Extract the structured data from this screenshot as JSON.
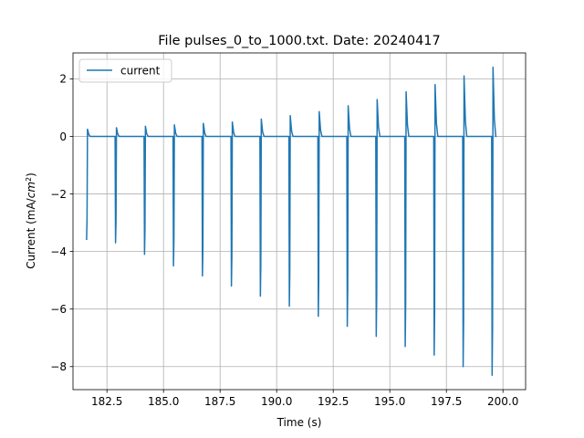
{
  "chart_data": {
    "type": "line",
    "title": "File pulses_0_to_1000.txt. Date: 20240417",
    "xlabel": "Time (s)",
    "ylabel_prefix": "Current (mA/",
    "ylabel_unit": "cm",
    "ylabel_exp": "2",
    "ylabel_suffix": ")",
    "xlim": [
      181.0,
      201.0
    ],
    "ylim": [
      -8.8,
      2.9
    ],
    "xticks": [
      182.5,
      185.0,
      187.5,
      190.0,
      192.5,
      195.0,
      197.5,
      200.0
    ],
    "xtick_labels": [
      "182.5",
      "185.0",
      "187.5",
      "190.0",
      "192.5",
      "195.0",
      "197.5",
      "200.0"
    ],
    "yticks": [
      2,
      0,
      -2,
      -4,
      -6,
      -8
    ],
    "ytick_labels": [
      "2",
      "0",
      "−2",
      "−4",
      "−6",
      "−8"
    ],
    "grid": true,
    "legend_placement": "top-left",
    "series": [
      {
        "name": "current",
        "color": "#1f77b4",
        "pulse_start": 181.6,
        "pulse_period": 1.28,
        "pulse_peaks": [
          0.25,
          0.3,
          0.35,
          0.4,
          0.45,
          0.5,
          0.6,
          0.72,
          0.86,
          1.06,
          1.28,
          1.55,
          1.8,
          2.1,
          2.4
        ],
        "pulse_troughs": [
          -3.6,
          -3.7,
          -4.1,
          -4.5,
          -4.85,
          -5.2,
          -5.55,
          -5.9,
          -6.25,
          -6.6,
          -6.95,
          -7.3,
          -7.6,
          -8.0,
          -8.3
        ],
        "baseline": 0.0
      }
    ]
  }
}
